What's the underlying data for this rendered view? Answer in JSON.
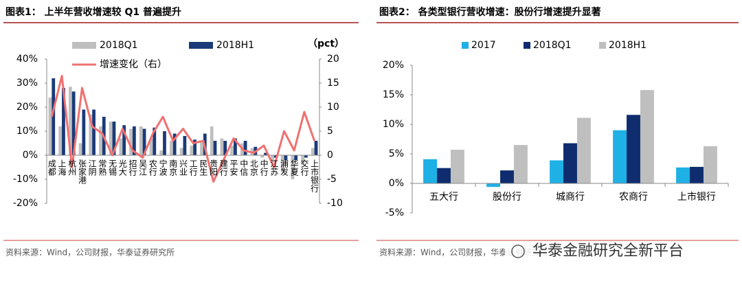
{
  "chart_data": [
    {
      "type": "combo",
      "title": "图表1：  上半年营收增速较 Q1 普遍提升",
      "source": "资料来源：Wind，公司财报，华泰证券研究所",
      "categories": [
        "成都",
        "上海",
        "杭州",
        "张家港",
        "江阴",
        "常熟",
        "无锡",
        "光大",
        "招行",
        "吴江",
        "农行",
        "宁波",
        "南京",
        "兴业",
        "工行",
        "民生",
        "贵阳",
        "建行",
        "平安",
        "中信",
        "北京",
        "中行",
        "江苏",
        "浦发",
        "华夏",
        "交行",
        "上市银行"
      ],
      "series": [
        {
          "name": "2018Q1",
          "type": "bar",
          "color": "#bfbfbf",
          "values": [
            24,
            12,
            28.5,
            5,
            17,
            12,
            14,
            7,
            11,
            12,
            7,
            2,
            6,
            3,
            4,
            6,
            12,
            7,
            4,
            5,
            3,
            -1,
            -3,
            -7,
            -10,
            -4,
            3
          ]
        },
        {
          "name": "2018H1",
          "type": "bar",
          "color": "#1b3a78",
          "values": [
            32,
            28,
            26.5,
            19,
            19,
            16,
            14,
            12.5,
            12,
            11,
            11.5,
            10,
            9,
            8,
            6.5,
            9,
            6,
            6,
            7,
            6,
            3.5,
            1,
            -1,
            -2,
            -2,
            -1,
            6
          ]
        },
        {
          "name": "增速变化（右）",
          "type": "line",
          "axis": "y2",
          "color": "#f07070",
          "values": [
            8,
            16.5,
            -2.5,
            14,
            6,
            4.5,
            0,
            5.5,
            1,
            -0.5,
            4.5,
            8,
            3,
            5.5,
            2.5,
            3,
            -5.5,
            -1,
            3.5,
            1,
            0.5,
            2,
            -2.5,
            5,
            1,
            9,
            3
          ]
        }
      ],
      "ylim": [
        -20,
        40
      ],
      "yticks": [
        {
          "value": -20,
          "label": "-20%"
        },
        {
          "value": -10,
          "label": "-10%"
        },
        {
          "value": 0,
          "label": "0%"
        },
        {
          "value": 10,
          "label": "10%"
        },
        {
          "value": 20,
          "label": "20%"
        },
        {
          "value": 30,
          "label": "30%"
        },
        {
          "value": 40,
          "label": "40%"
        }
      ],
      "y2lim": [
        -10,
        20
      ],
      "y2ticks": [
        -10,
        -5,
        0,
        5,
        10,
        15,
        20
      ],
      "y2_label": "（pct）",
      "grid": false
    },
    {
      "type": "bar",
      "title": "图表2：  各类型银行营收增速：股份行增速提升显著",
      "source": "资料来源：Wind，公司财报，华泰证券研究所",
      "categories": [
        "五大行",
        "股份行",
        "城商行",
        "农商行",
        "上市银行"
      ],
      "series": [
        {
          "name": "2017",
          "color": "#1fb0e6",
          "values": [
            4.1,
            -0.6,
            3.9,
            9.0,
            2.7
          ]
        },
        {
          "name": "2018Q1",
          "color": "#0f2d6e",
          "values": [
            2.6,
            2.2,
            6.8,
            11.6,
            2.8
          ]
        },
        {
          "name": "2018H1",
          "color": "#bfbfbf",
          "values": [
            5.7,
            6.5,
            11.1,
            15.8,
            6.3
          ]
        }
      ],
      "ylim": [
        -5,
        20
      ],
      "yticks": [
        {
          "value": -5,
          "label": "-5%"
        },
        {
          "value": 0,
          "label": "0%"
        },
        {
          "value": 5,
          "label": "5%"
        },
        {
          "value": 10,
          "label": "10%"
        },
        {
          "value": 15,
          "label": "15%"
        },
        {
          "value": 20,
          "label": "20%"
        }
      ],
      "grid": false
    }
  ],
  "watermark": "华泰金融研究全新平台"
}
